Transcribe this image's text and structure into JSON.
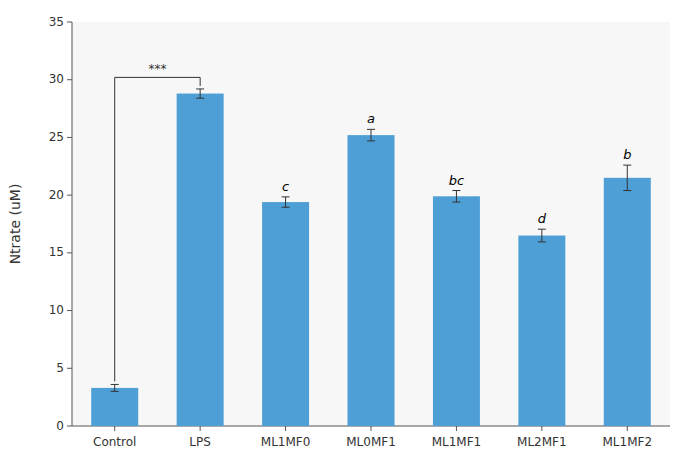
{
  "chart_data": {
    "type": "bar",
    "categories": [
      "Control",
      "LPS",
      "ML1MF0",
      "ML0MF1",
      "ML1MF1",
      "ML2MF1",
      "ML1MF2"
    ],
    "values": [
      3.3,
      28.8,
      19.4,
      25.2,
      19.9,
      16.5,
      21.5
    ],
    "errors": [
      0.3,
      0.4,
      0.45,
      0.5,
      0.5,
      0.55,
      1.1
    ],
    "color": "#4D9FD6",
    "ylabel": "Ntrate (uM)",
    "ylim": [
      0,
      35
    ],
    "yticks": [
      0,
      5,
      10,
      15,
      20,
      25,
      30,
      35
    ],
    "significance_labels": [
      null,
      null,
      "c",
      "a",
      "bc",
      "d",
      "b"
    ],
    "bracket": {
      "between": [
        "Control",
        "LPS"
      ],
      "y": 30.2,
      "label": "***"
    },
    "grid": false
  }
}
